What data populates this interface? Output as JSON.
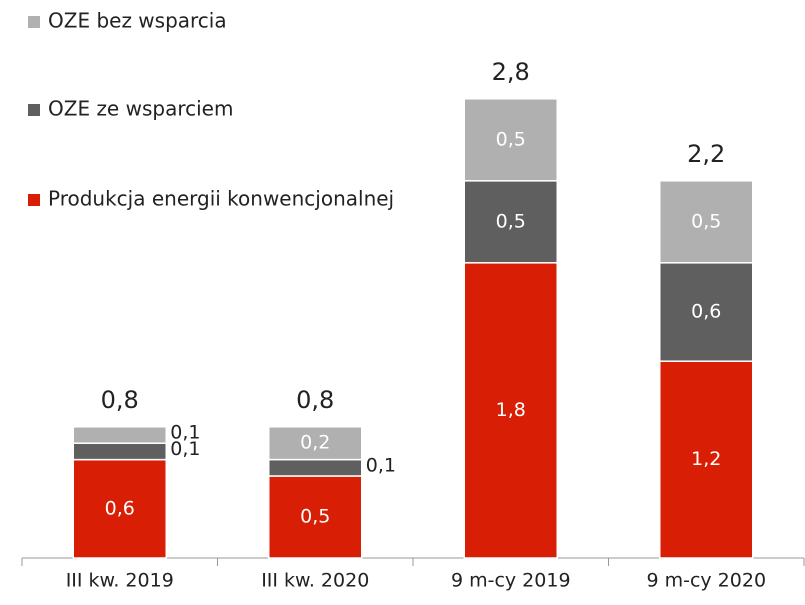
{
  "chart_data": {
    "type": "bar",
    "stacked": true,
    "categories": [
      "III kw. 2019",
      "III kw. 2020",
      "9 m-cy 2019",
      "9 m-cy 2020"
    ],
    "series": [
      {
        "name": "Produkcja energii konwencjonalnej",
        "color": "#d81e05",
        "values": [
          0.6,
          0.5,
          1.8,
          1.2
        ],
        "value_labels": [
          "0,6",
          "0,5",
          "1,8",
          "1,2"
        ]
      },
      {
        "name": "OZE ze wsparciem",
        "color": "#5f5f5f",
        "values": [
          0.1,
          0.1,
          0.5,
          0.6
        ],
        "value_labels": [
          "0,1",
          "0,1",
          "0,5",
          "0,6"
        ]
      },
      {
        "name": "OZE bez wsparcia",
        "color": "#b0b0b0",
        "values": [
          0.1,
          0.2,
          0.5,
          0.5
        ],
        "value_labels": [
          "0,1",
          "0,2",
          "0,5",
          "0,5"
        ]
      }
    ],
    "totals": [
      0.8,
      0.8,
      2.8,
      2.2
    ],
    "total_labels": [
      "0,8",
      "0,8",
      "2,8",
      "2,2"
    ],
    "ylim": [
      0,
      3
    ]
  }
}
